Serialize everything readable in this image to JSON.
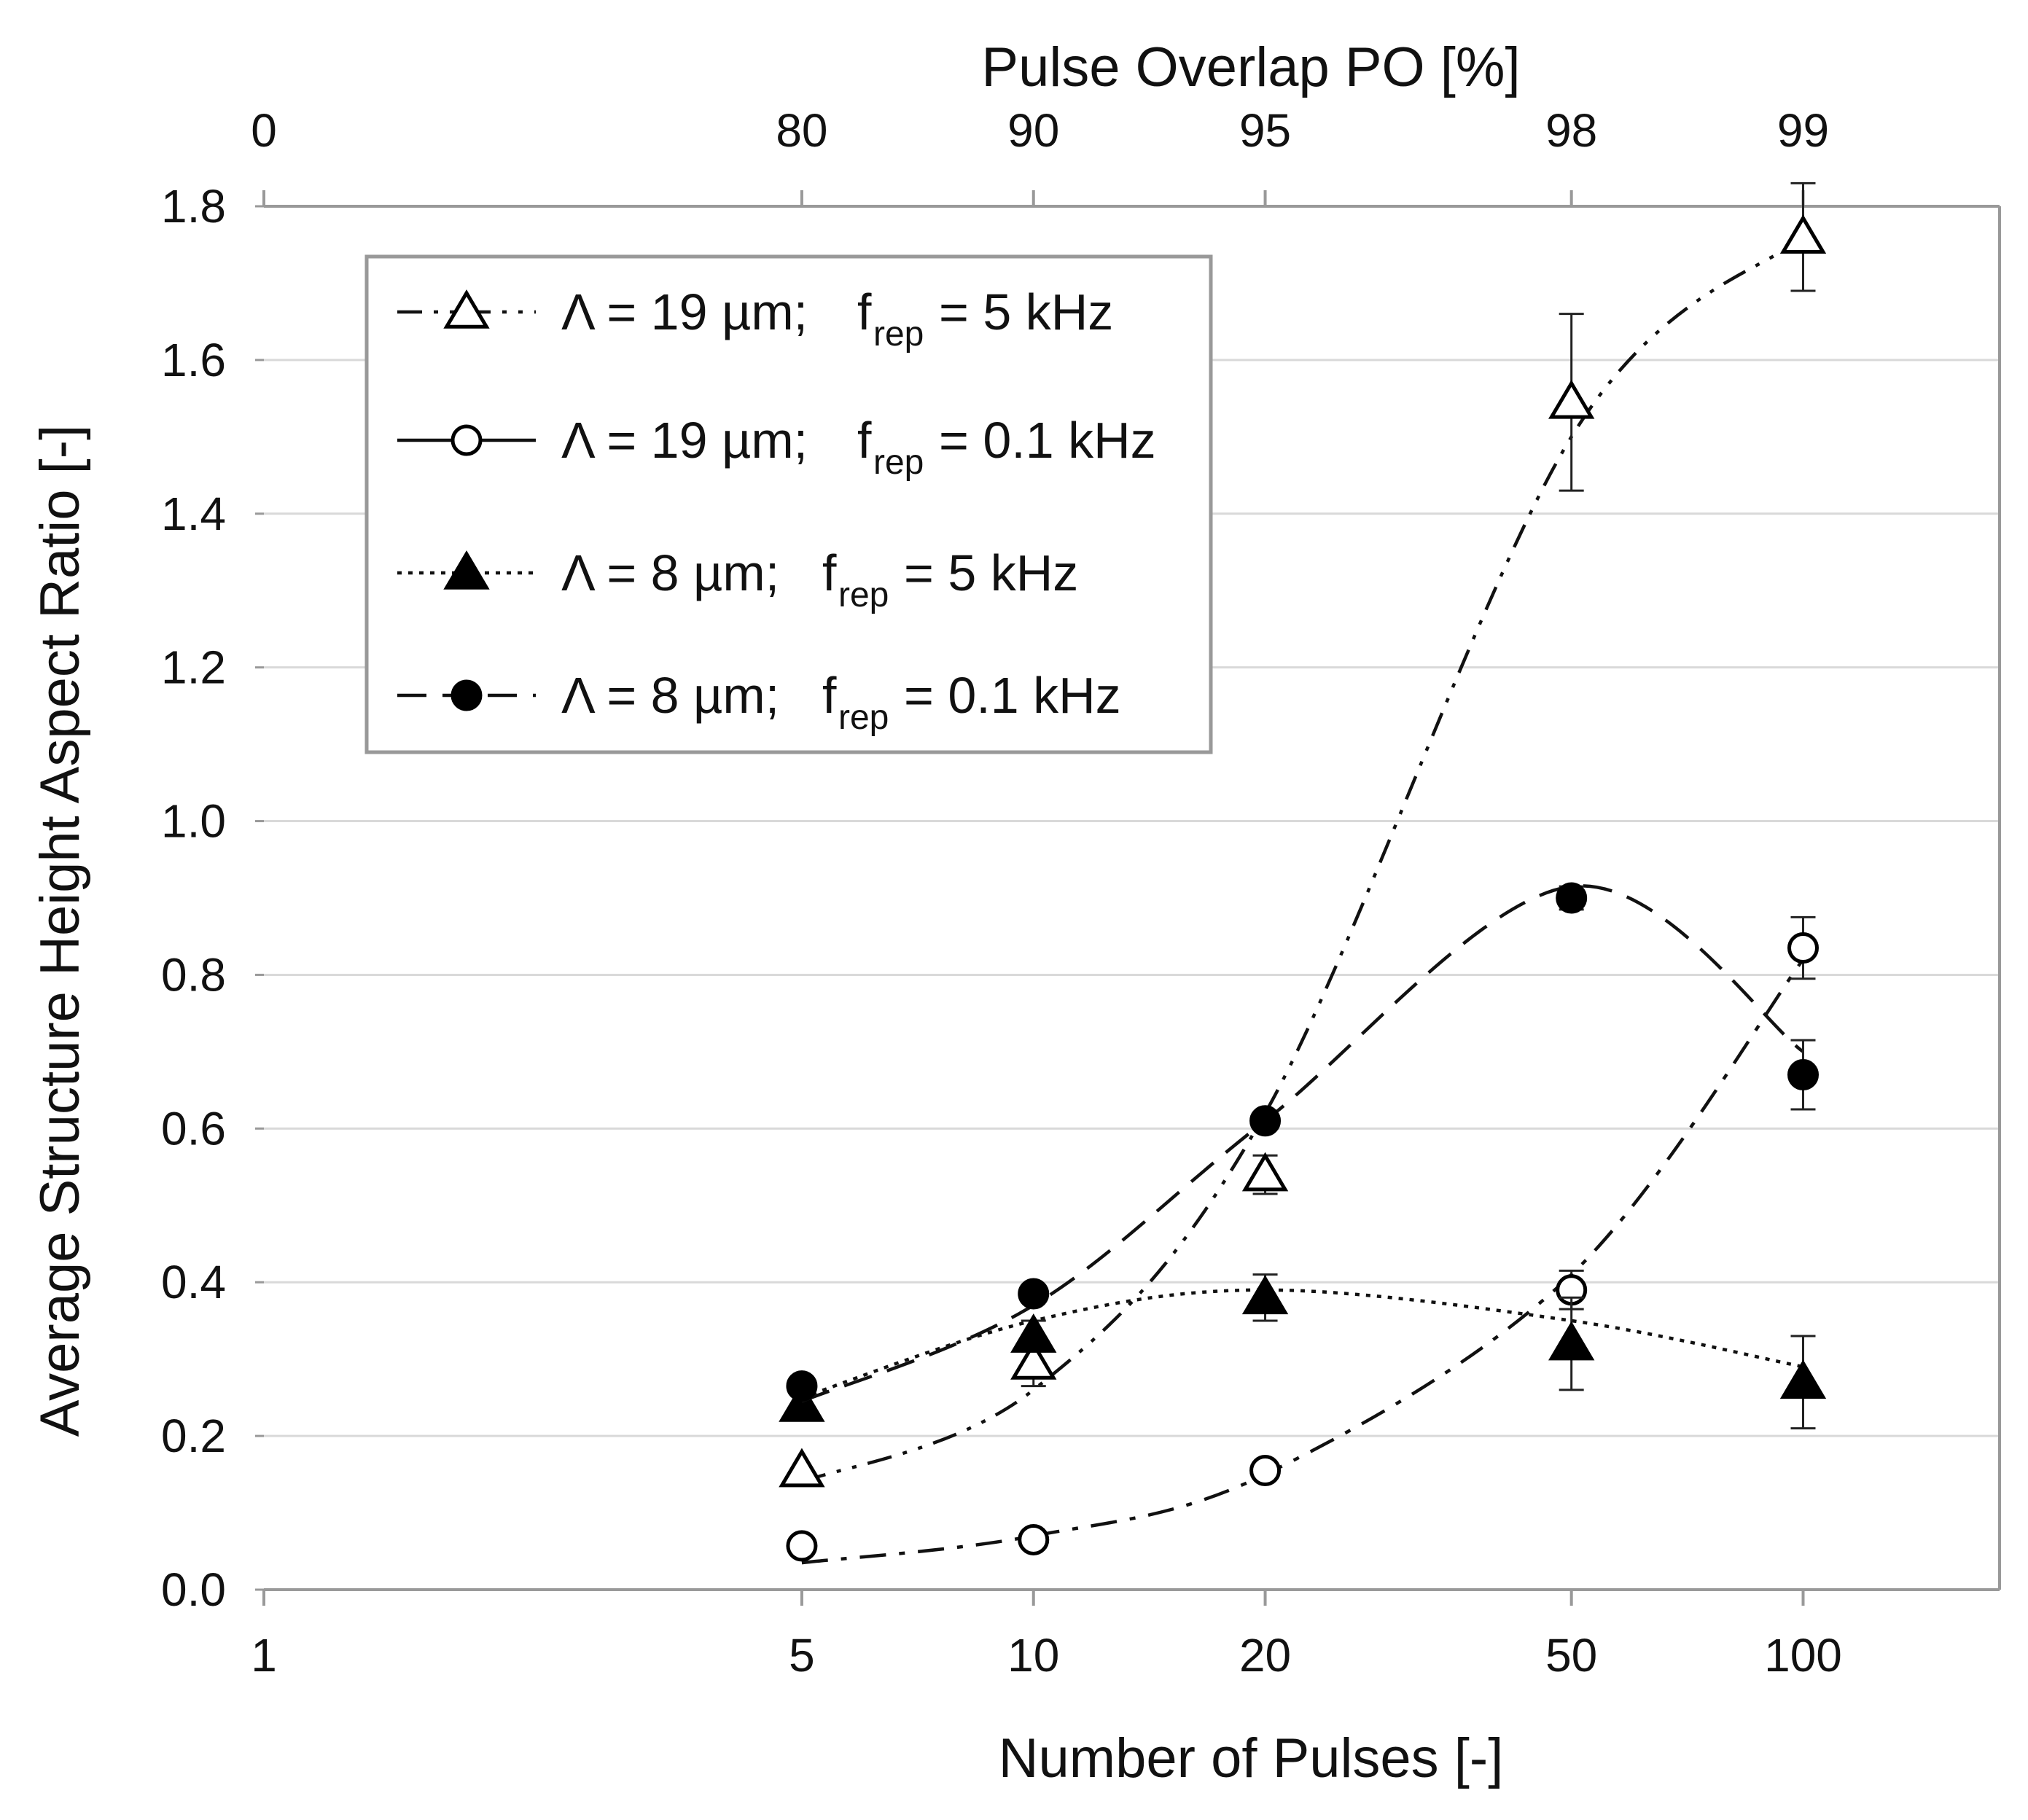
{
  "chart_data": {
    "type": "scatter",
    "title": "",
    "xlabel": "Number of Pulses [-]",
    "ylabel": "Average Structure Height Aspect Ratio [-]",
    "x_scale": "log",
    "xlim": [
      1,
      180
    ],
    "ylim": [
      0,
      1.8
    ],
    "grid": true,
    "x_ticks": [
      1,
      5,
      10,
      20,
      50,
      100
    ],
    "x_tick_labels": [
      "1",
      "5",
      "10",
      "20",
      "50",
      "100"
    ],
    "y_ticks": [
      0,
      0.2,
      0.4,
      0.6,
      0.8,
      1.0,
      1.2,
      1.4,
      1.6,
      1.8
    ],
    "y_tick_labels": [
      "0.0",
      "0.2",
      "0.4",
      "0.6",
      "0.8",
      "1.0",
      "1.2",
      "1.4",
      "1.6",
      "1.8"
    ],
    "top_axis": {
      "label": "Pulse Overlap PO [%]",
      "ticks_at_x": [
        1,
        5,
        10,
        20,
        50,
        100
      ],
      "tick_labels": [
        "0",
        "80",
        "90",
        "95",
        "98",
        "99"
      ]
    },
    "legend_position": "top-left",
    "series": [
      {
        "name": "Λ = 19 µm; f_rep = 5 kHz",
        "legend_lambda": "Λ = 19 µm;",
        "legend_sub": "rep",
        "legend_freq": "= 5 kHz",
        "marker": "triangle-open",
        "line": "dash-dot-dot",
        "x": [
          5,
          10,
          20,
          50,
          100
        ],
        "y": [
          0.155,
          0.295,
          0.54,
          1.545,
          1.76
        ],
        "err": [
          0.0,
          0.03,
          0.025,
          0.115,
          0.07
        ],
        "fit_y": [
          0.14,
          0.26,
          0.62,
          1.5,
          1.76
        ]
      },
      {
        "name": "Λ = 19 µm; f_rep = 0.1 kHz",
        "legend_lambda": "Λ = 19 µm;",
        "legend_sub": "rep",
        "legend_freq": "= 0.1 kHz",
        "marker": "circle-open",
        "line": "dash-dot",
        "x": [
          5,
          10,
          20,
          50,
          100
        ],
        "y": [
          0.057,
          0.065,
          0.155,
          0.39,
          0.835
        ],
        "err": [
          0.0,
          0.0,
          0.0,
          0.025,
          0.04
        ],
        "fit_y": [
          0.035,
          0.07,
          0.15,
          0.41,
          0.82
        ]
      },
      {
        "name": "Λ = 8 µm; f_rep = 5 kHz",
        "legend_lambda": "Λ = 8 µm;",
        "legend_sub": "rep",
        "legend_freq": "= 5 kHz",
        "marker": "triangle-filled",
        "line": "dotted",
        "x": [
          5,
          10,
          20,
          50,
          100
        ],
        "y": [
          0.24,
          0.33,
          0.38,
          0.32,
          0.27
        ],
        "err": [
          0.02,
          0.02,
          0.03,
          0.06,
          0.06
        ],
        "fit_y": [
          0.25,
          0.35,
          0.39,
          0.35,
          0.29
        ]
      },
      {
        "name": "Λ = 8 µm; f_rep = 0.1 kHz",
        "legend_lambda": "Λ = 8 µm;",
        "legend_sub": "rep",
        "legend_freq": "= 0.1 kHz",
        "marker": "circle-filled",
        "line": "dashed",
        "x": [
          5,
          10,
          20,
          50,
          100
        ],
        "y": [
          0.265,
          0.385,
          0.61,
          0.9,
          0.67
        ],
        "err": [
          0.0,
          0.0,
          0.0,
          0.015,
          0.045
        ],
        "fit_y": [
          0.245,
          0.37,
          0.61,
          0.915,
          0.7
        ]
      }
    ]
  }
}
